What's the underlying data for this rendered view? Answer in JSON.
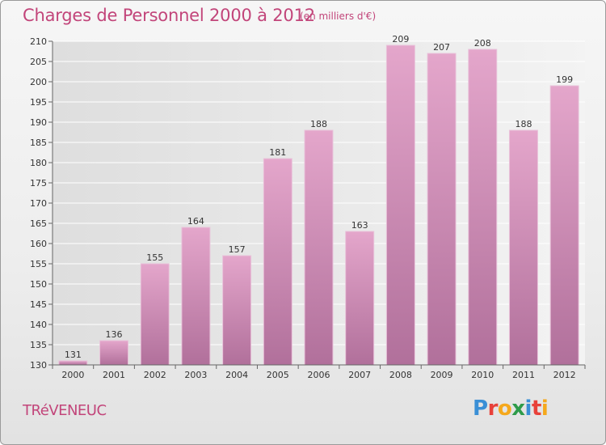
{
  "header": {
    "title": "Charges de Personnel 2000 à 2012",
    "subtitle": "(en milliers d'€)"
  },
  "footer": {
    "location": "TRéVENEUC",
    "logo_text": "Proxiti",
    "logo_letter_colors": [
      "#3a8fd6",
      "#e8413a",
      "#f5a81c",
      "#2e9b4a",
      "#3a8fd6",
      "#e8413a",
      "#f5a81c"
    ]
  },
  "colors": {
    "bar_top": "#e4a6cb",
    "bar_bottom": "#b1709b",
    "grid": "#ffffff",
    "accent_text": "#c2457a"
  },
  "chart_data": {
    "type": "bar",
    "title": "Charges de Personnel 2000 à 2012",
    "subtitle": "(en milliers d'€)",
    "categories": [
      "2000",
      "2001",
      "2002",
      "2003",
      "2004",
      "2005",
      "2006",
      "2007",
      "2008",
      "2009",
      "2010",
      "2011",
      "2012"
    ],
    "values": [
      131,
      136,
      155,
      164,
      157,
      181,
      188,
      163,
      209,
      207,
      208,
      188,
      199
    ],
    "ylim": [
      130,
      210
    ],
    "yticks": [
      130,
      135,
      140,
      145,
      150,
      155,
      160,
      165,
      170,
      175,
      180,
      185,
      190,
      195,
      200,
      205,
      210
    ],
    "grid": true,
    "data_labels": true
  }
}
